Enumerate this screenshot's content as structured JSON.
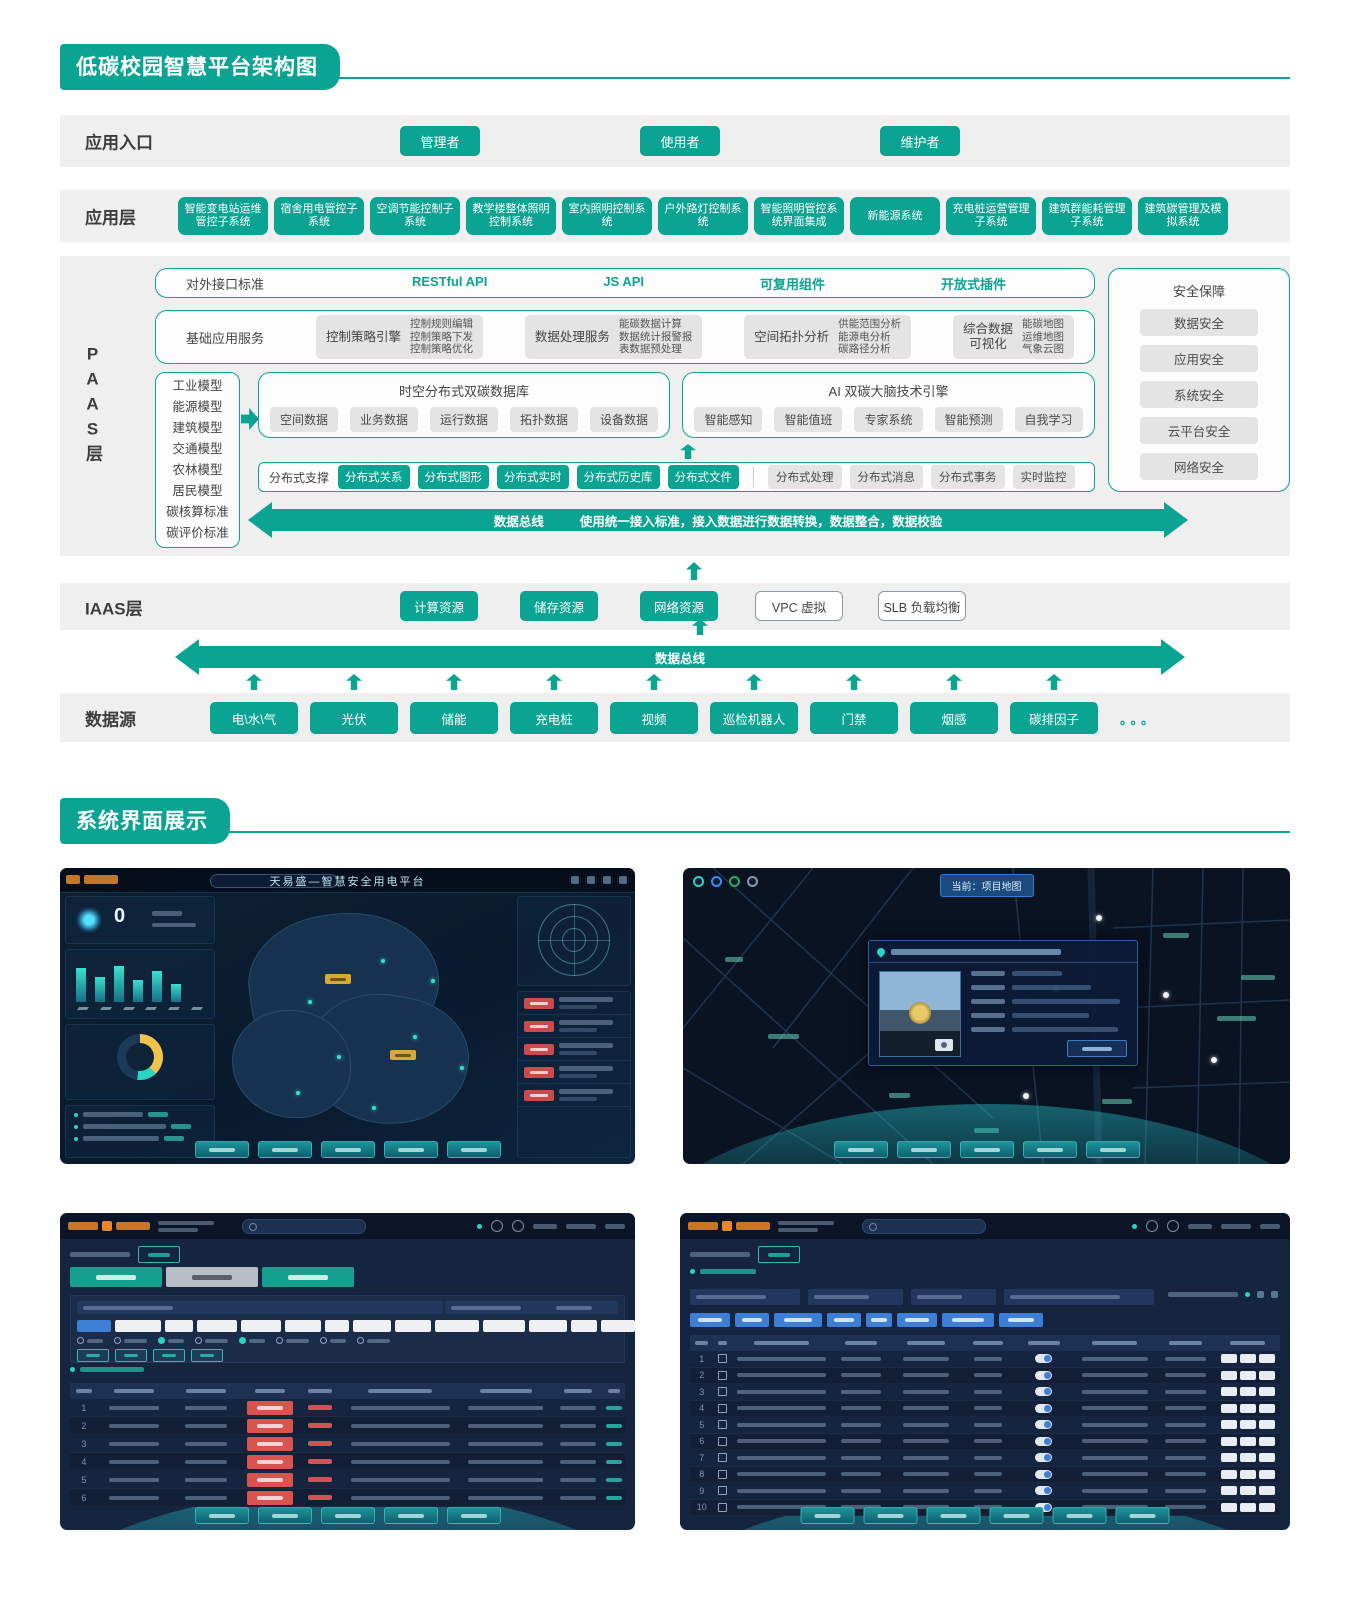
{
  "colors": {
    "teal": "#0ba493",
    "band_gray": "#efefef",
    "chip_gray": "#e4e4e4",
    "red_badge": "#d9534f",
    "blue": "#3e7fd6",
    "dark_panel": "#16253f"
  },
  "header": {
    "section1_title": "低碳校园智慧平台架构图",
    "section2_title": "系统界面展示"
  },
  "entry": {
    "label": "应用入口",
    "roles": [
      "管理者",
      "使用者",
      "维护者"
    ]
  },
  "app_layer": {
    "label": "应用层",
    "systems": [
      "智能变电站运维管控子系统",
      "宿舍用电管控子系统",
      "空调节能控制子系统",
      "教学楼整体照明控制系统",
      "室内照明控制系统",
      "户外路灯控制系统",
      "智能照明管控系统界面集成",
      "新能源系统",
      "充电桩运营管理子系统",
      "建筑群能耗管理子系统",
      "建筑碳管理及模拟系统"
    ]
  },
  "paas": {
    "label": "PAAS层",
    "interface_row": {
      "title": "对外接口标准",
      "items": [
        "RESTful API",
        "JS API",
        "可复用组件",
        "开放式插件"
      ]
    },
    "services_row": {
      "title": "基础应用服务",
      "groups": [
        {
          "name_lines": [
            "控制策略引擎"
          ],
          "details": [
            "控制规则编辑",
            "控制策略下发",
            "控制策略优化"
          ]
        },
        {
          "name_lines": [
            "数据处理服务"
          ],
          "details": [
            "能碳数据计算",
            "数据统计报警报",
            "表数据预处理"
          ]
        },
        {
          "name_lines": [
            "空间拓扑分析"
          ],
          "details": [
            "供能范围分析",
            "能源电分析",
            "碳路径分析"
          ]
        },
        {
          "name_lines": [
            "综合数据",
            "可视化"
          ],
          "details": [
            "能碳地图",
            "运维地图",
            "气象云图"
          ]
        }
      ]
    },
    "models": [
      "工业模型",
      "能源模型",
      "建筑模型",
      "交通模型",
      "农林模型",
      "居民模型",
      "碳核算标准",
      "碳评价标准"
    ],
    "database": {
      "title": "时空分布式双碳数据库",
      "items": [
        "空间数据",
        "业务数据",
        "运行数据",
        "拓扑数据",
        "设备数据"
      ]
    },
    "ai_engine": {
      "title": "AI 双碳大脑技术引擎",
      "items": [
        "智能感知",
        "智能值班",
        "专家系统",
        "智能预测",
        "自我学习"
      ]
    },
    "distributed": {
      "title": "分布式支撑",
      "teal_items": [
        "分布式关系",
        "分布式图形",
        "分布式实时",
        "分布式历史库",
        "分布式文件"
      ],
      "gray_items": [
        "分布式处理",
        "分布式消息",
        "分布式事务",
        "实时监控"
      ]
    },
    "bus1": {
      "label": "数据总线",
      "desc": "使用统一接入标准，接入数据进行数据转换，数据整合，数据校验"
    },
    "security": {
      "title": "安全保障",
      "items": [
        "数据安全",
        "应用安全",
        "系统安全",
        "云平台安全",
        "网络安全"
      ]
    }
  },
  "iaas": {
    "label": "IAAS层",
    "teal_items": [
      "计算资源",
      "储存资源",
      "网络资源"
    ],
    "outline_items": [
      "VPC 虚拟",
      "SLB 负载均衡"
    ],
    "bus2_label": "数据总线"
  },
  "datasource": {
    "label": "数据源",
    "items": [
      "电\\水\\气",
      "光伏",
      "储能",
      "充电桩",
      "视频",
      "巡检机器人",
      "门禁",
      "烟感",
      "碳排因子"
    ],
    "ellipsis": "。。。"
  },
  "screens": {
    "panel1": {
      "title": "天易盛—智慧安全用电平台",
      "stat_value": "0",
      "bars": [
        34,
        25,
        36,
        22,
        31,
        18
      ],
      "alert_rows": 5,
      "footer_buttons": 5
    },
    "panel2": {
      "tab": "当前：项目地图",
      "footer_buttons": 5
    },
    "panel3": {
      "filter_chips": 14,
      "radio_count": 8,
      "filter_buttons": 4,
      "table_rows": 6,
      "footer_buttons": 5
    },
    "panel4": {
      "filter_inputs": 4,
      "blue_buttons": 8,
      "table_rows": 10,
      "footer_buttons": 6
    }
  }
}
